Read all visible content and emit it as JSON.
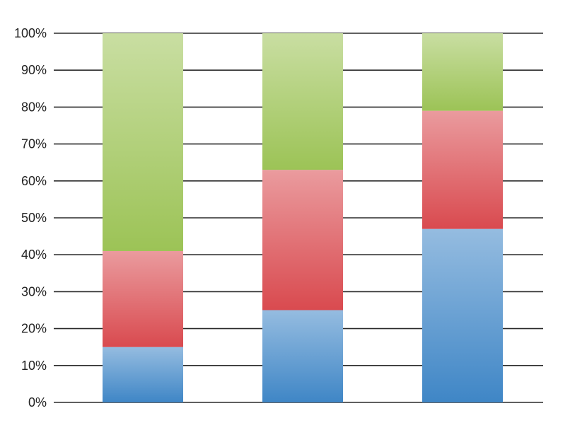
{
  "chart_data": {
    "type": "bar",
    "stacked": true,
    "percent_stacked": true,
    "categories": [
      "",
      "",
      ""
    ],
    "series": [
      {
        "values": [
          15,
          25,
          47
        ],
        "color": "#3f86c6"
      },
      {
        "values": [
          26,
          38,
          32
        ],
        "color": "#d94a4f"
      },
      {
        "values": [
          59,
          37,
          21
        ],
        "color": "#9cc356"
      }
    ],
    "ylim": [
      0,
      100
    ],
    "yticks": [
      0,
      10,
      20,
      30,
      40,
      50,
      60,
      70,
      80,
      90,
      100
    ],
    "ytick_labels": [
      "0%",
      "10%",
      "20%",
      "30%",
      "40%",
      "50%",
      "60%",
      "70%",
      "80%",
      "90%",
      "100%"
    ],
    "grid": true,
    "legend": "none",
    "title": "",
    "xlabel": "",
    "ylabel": ""
  }
}
